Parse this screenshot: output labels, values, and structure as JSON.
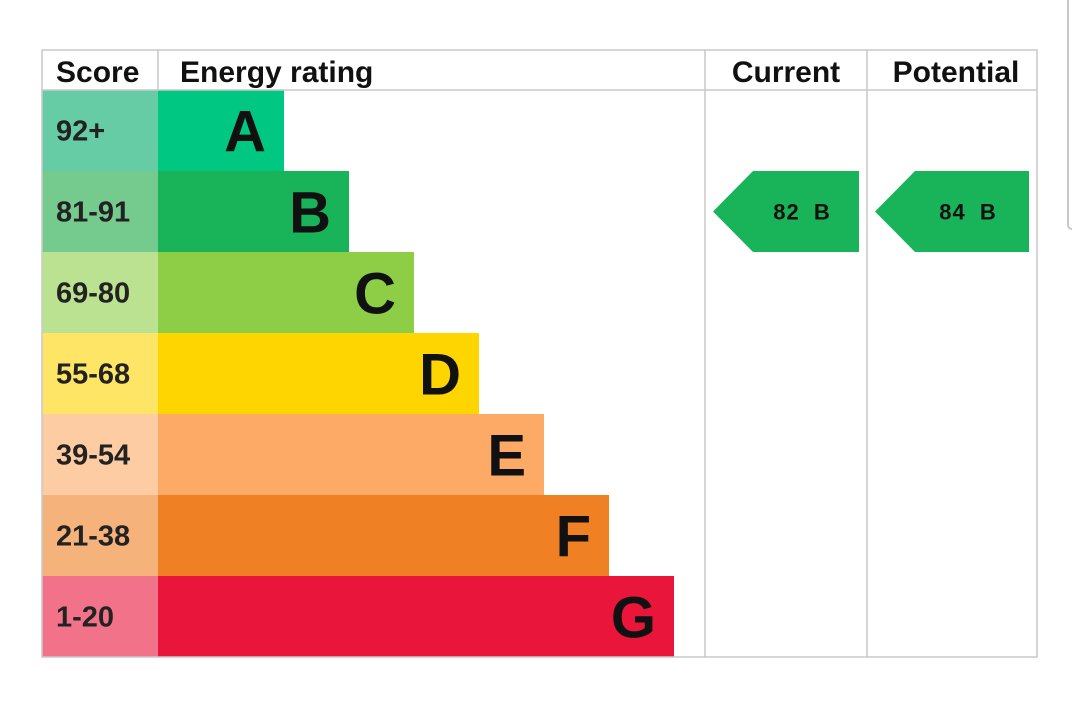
{
  "chart_data": {
    "type": "bar",
    "title": "",
    "headers": {
      "score": "Score",
      "rating": "Energy rating",
      "current": "Current",
      "potential": "Potential"
    },
    "categories": [
      "A",
      "B",
      "C",
      "D",
      "E",
      "F",
      "G"
    ],
    "bands": [
      {
        "letter": "A",
        "range": "92+",
        "color": "#00c781",
        "score_bg": "#66cca5"
      },
      {
        "letter": "B",
        "range": "81-91",
        "color": "#19b459",
        "score_bg": "#75cb8e"
      },
      {
        "letter": "C",
        "range": "69-80",
        "color": "#8dce46",
        "score_bg": "#bbe290"
      },
      {
        "letter": "D",
        "range": "55-68",
        "color": "#ffd500",
        "score_bg": "#ffe566"
      },
      {
        "letter": "E",
        "range": "39-54",
        "color": "#fcaa65",
        "score_bg": "#fdcca3"
      },
      {
        "letter": "F",
        "range": "21-38",
        "color": "#ef8023",
        "score_bg": "#f5b37b"
      },
      {
        "letter": "G",
        "range": "1-20",
        "color": "#e9153b",
        "score_bg": "#f27389"
      }
    ],
    "current": {
      "value": 82,
      "band": "B",
      "label": "82  B"
    },
    "potential": {
      "value": 84,
      "band": "B",
      "label": "84  B"
    }
  }
}
